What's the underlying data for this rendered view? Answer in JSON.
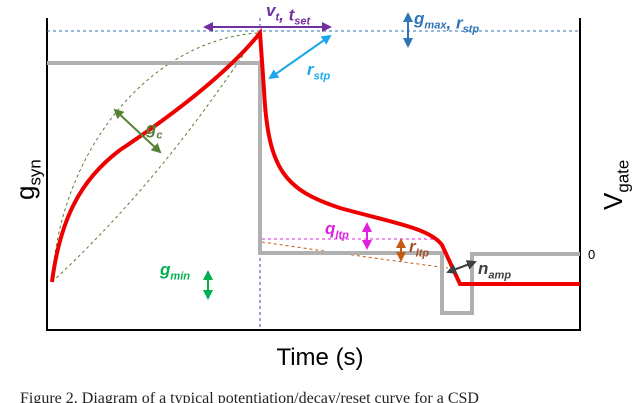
{
  "axes": {
    "y_left": [
      {
        "t": "g",
        "s": "syn"
      }
    ],
    "y_right": [
      {
        "t": "V",
        "s": "gate"
      }
    ],
    "x": "Time (s)",
    "y_right_tick": "0"
  },
  "annotations": {
    "vt_tset": [
      {
        "t": "v",
        "s": "t"
      },
      {
        "t": ", t",
        "s": "set"
      }
    ],
    "gmax_rstp": [
      {
        "t": "g",
        "s": "max"
      },
      {
        "t": ", r",
        "s": "stp"
      }
    ],
    "rstp": [
      {
        "t": "r",
        "s": "stp"
      }
    ],
    "gc": [
      {
        "t": "g",
        "s": "c"
      }
    ],
    "qltp": [
      {
        "t": "q",
        "s": "ltp"
      }
    ],
    "rltp": [
      {
        "t": "r",
        "s": "ltp"
      }
    ],
    "namp": [
      {
        "t": "n",
        "s": "amp"
      }
    ],
    "gmin": [
      {
        "t": "g",
        "s": "min"
      }
    ]
  },
  "caption": "Figure 2. Diagram of a typical potentiation/decay/reset curve for a CSD"
}
